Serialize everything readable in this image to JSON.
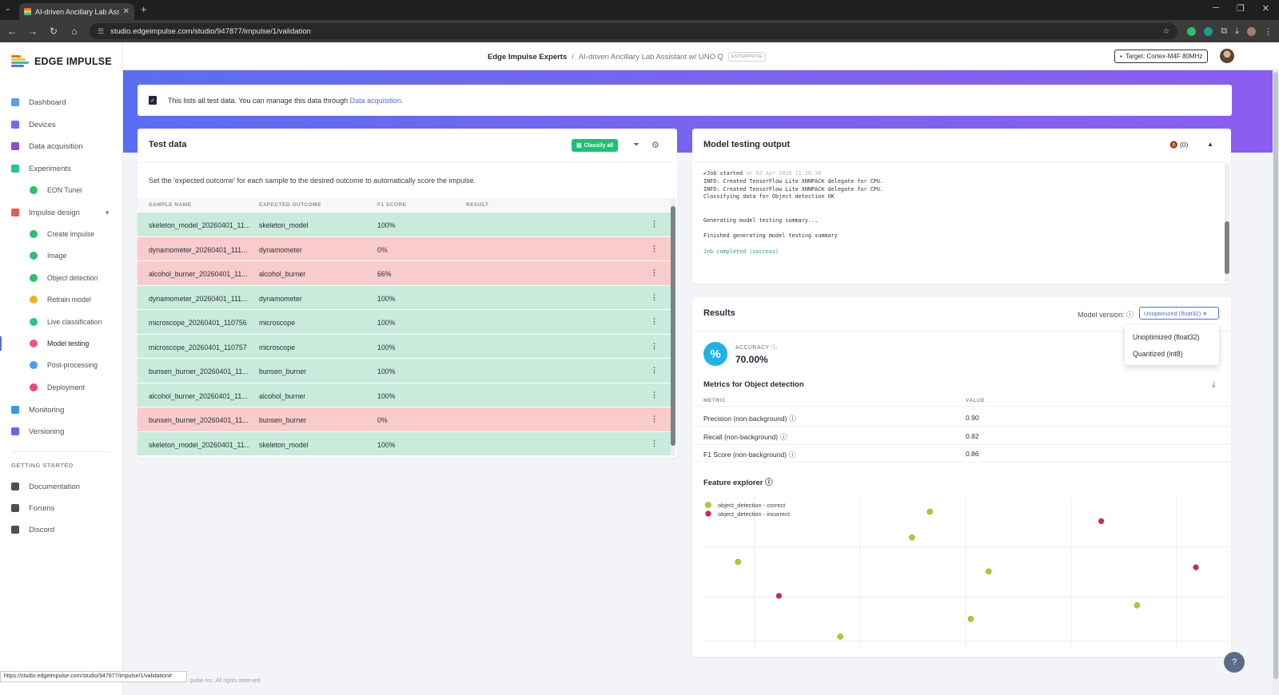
{
  "browser": {
    "tab_title": "AI-driven Ancillary Lab Assistant",
    "url": "studio.edgeimpulse.com/studio/947877/impulse/1/validation",
    "status_url": "https://studio.edgeimpulse.com/studio/947877/impulse/1/validation#",
    "footer_text": "pulse Inc. All rights reserved"
  },
  "brand": {
    "name": "EDGE IMPULSE"
  },
  "sidebar": {
    "items": [
      {
        "label": "Dashboard",
        "color": "#5b9cf0"
      },
      {
        "label": "Devices",
        "color": "#6c6ff0"
      },
      {
        "label": "Data acquisition",
        "color": "#8a4dd6"
      },
      {
        "label": "Experiments",
        "color": "#2fbf9a"
      },
      {
        "label": "EON Tuner",
        "color": "#2fbf6a"
      },
      {
        "label": "Impulse design",
        "color": "#e85a5a"
      },
      {
        "label": "Create impulse",
        "color": "#2fbf6a"
      },
      {
        "label": "Image",
        "color": "#2fbf6a"
      },
      {
        "label": "Object detection",
        "color": "#2fbf6a"
      },
      {
        "label": "Retrain model",
        "color": "#f0b020"
      },
      {
        "label": "Live classification",
        "color": "#2fbf9a"
      },
      {
        "label": "Model testing",
        "color": "#e85a7a"
      },
      {
        "label": "Post-processing",
        "color": "#4aa0f0"
      },
      {
        "label": "Deployment",
        "color": "#e84a6a"
      },
      {
        "label": "Monitoring",
        "color": "#2f9af0"
      },
      {
        "label": "Versioning",
        "color": "#5b6cf0"
      }
    ],
    "section_title": "GETTING STARTED",
    "getting_started": [
      {
        "label": "Documentation"
      },
      {
        "label": "Forums"
      },
      {
        "label": "Discord"
      }
    ]
  },
  "header": {
    "org": "Edge Impulse Experts",
    "separator": "/",
    "project": "AI-driven Ancillary Lab Assistant w/ UNO Q",
    "badge": "ENTERPRISE",
    "target": "Target: Cortex-M4F 80MHz"
  },
  "info": {
    "text": "This lists all test data. You can manage this data through",
    "link": "Data acquisition",
    "suffix": "."
  },
  "test_data": {
    "title": "Test data",
    "classify_label": "Classify all",
    "description": "Set the 'expected outcome' for each sample to the desired outcome to automatically score the impulse.",
    "columns": [
      "SAMPLE NAME",
      "EXPECTED OUTCOME",
      "F1 SCORE",
      "RESULT"
    ],
    "rows": [
      {
        "name": "skeleton_model_20260401_11...",
        "expected": "skeleton_model",
        "f1": "100%",
        "status": "ok"
      },
      {
        "name": "dynamometer_20260401_111...",
        "expected": "dynamometer",
        "f1": "0%",
        "status": "bad"
      },
      {
        "name": "alcohol_burner_20260401_11...",
        "expected": "alcohol_burner",
        "f1": "66%",
        "status": "bad"
      },
      {
        "name": "dynamometer_20260401_111...",
        "expected": "dynamometer",
        "f1": "100%",
        "status": "ok"
      },
      {
        "name": "microscope_20260401_110756",
        "expected": "microscope",
        "f1": "100%",
        "status": "ok"
      },
      {
        "name": "microscope_20260401_110757",
        "expected": "microscope",
        "f1": "100%",
        "status": "ok"
      },
      {
        "name": "bunsen_burner_20260401_11...",
        "expected": "bunsen_burner",
        "f1": "100%",
        "status": "ok"
      },
      {
        "name": "alcohol_burner_20260401_11...",
        "expected": "alcohol_burner",
        "f1": "100%",
        "status": "ok"
      },
      {
        "name": "bunsen_burner_20260401_11...",
        "expected": "bunsen_burner",
        "f1": "0%",
        "status": "bad"
      },
      {
        "name": "skeleton_model_20260401_11...",
        "expected": "skeleton_model",
        "f1": "100%",
        "status": "ok"
      }
    ]
  },
  "output": {
    "title": "Model testing output",
    "mute_count": "(0)",
    "log": {
      "started": "Job started",
      "started_ts": "at 02 Apr 2026 11:26:38",
      "line1": "INFO: Created TensorFlow Lite XNNPACK delegate for CPU.",
      "line2": "INFO: Created TensorFlow Lite XNNPACK delegate for CPU.",
      "line3": "Classifying data for Object detection OK",
      "line4": "Generating model testing summary...",
      "line5": "Finished generating model testing summary",
      "line6": "Job completed (success)"
    }
  },
  "results": {
    "title": "Results",
    "model_version_label": "Model version:",
    "selected_version": "Unoptimized (float32)",
    "options": [
      "Unoptimized (float32)",
      "Quantized (int8)"
    ],
    "accuracy_label": "ACCURACY",
    "accuracy_value": "70.00%",
    "metrics_title": "Metrics for Object detection",
    "metric_col": "METRIC",
    "value_col": "VALUE",
    "metrics": [
      {
        "name": "Precision (non-background)",
        "value": "0.90"
      },
      {
        "name": "Recall (non-background)",
        "value": "0.82"
      },
      {
        "name": "F1 Score (non-background)",
        "value": "0.86"
      }
    ],
    "feature_explorer_title": "Feature explorer"
  },
  "chart_data": {
    "type": "scatter",
    "title": "Feature explorer",
    "legend_position": "top-left",
    "grid": true,
    "xlim": [
      0,
      100
    ],
    "ylim": [
      0,
      100
    ],
    "series": [
      {
        "name": "object_detection - correct",
        "color": "#b5cc1f",
        "points": [
          [
            5.5,
            58
          ],
          [
            25.5,
            3
          ],
          [
            39.5,
            76
          ],
          [
            43,
            95
          ],
          [
            54.5,
            51
          ],
          [
            51,
            16
          ],
          [
            83.5,
            26
          ]
        ]
      },
      {
        "name": "object_detection - incorrect",
        "color": "#d4245e",
        "points": [
          [
            13.5,
            33
          ],
          [
            76.5,
            88
          ],
          [
            95,
            54
          ]
        ]
      }
    ]
  }
}
